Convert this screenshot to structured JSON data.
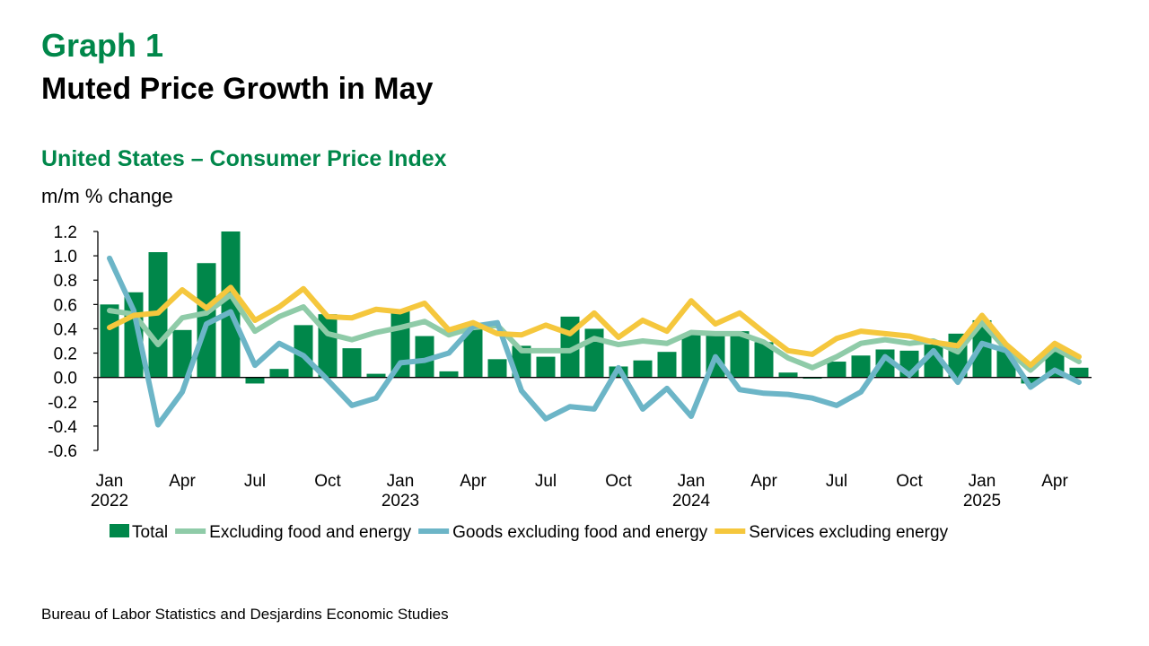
{
  "header": {
    "graph_label": "Graph 1",
    "title": "Muted Price Growth in May"
  },
  "chart_data": {
    "type": "bar+line",
    "title": "United States – Consumer Price Index",
    "ylabel": "m/m % change",
    "ylim": [
      -0.6,
      1.2
    ],
    "yticks": [
      "1.2",
      "1.0",
      "0.8",
      "0.6",
      "0.4",
      "0.2",
      "0.0",
      "-0.2",
      "-0.4",
      "-0.6"
    ],
    "x_start": "2022-01",
    "x_end": "2025-05",
    "xtick_labels": [
      {
        "month": "Jan",
        "year": "2022"
      },
      {
        "month": "Apr"
      },
      {
        "month": "Jul"
      },
      {
        "month": "Oct"
      },
      {
        "month": "Jan",
        "year": "2023"
      },
      {
        "month": "Apr"
      },
      {
        "month": "Jul"
      },
      {
        "month": "Oct"
      },
      {
        "month": "Jan",
        "year": "2024"
      },
      {
        "month": "Apr"
      },
      {
        "month": "Jul"
      },
      {
        "month": "Oct"
      },
      {
        "month": "Jan",
        "year": "2025"
      },
      {
        "month": "Apr"
      }
    ],
    "legend_position": "bottom",
    "grid": false,
    "series": [
      {
        "name": "Total",
        "kind": "bar",
        "color": "#00874A",
        "values": [
          0.6,
          0.7,
          1.03,
          0.39,
          0.94,
          1.2,
          -0.05,
          0.07,
          0.43,
          0.52,
          0.24,
          0.03,
          0.55,
          0.34,
          0.05,
          0.4,
          0.15,
          0.26,
          0.17,
          0.5,
          0.4,
          0.09,
          0.14,
          0.21,
          0.35,
          0.37,
          0.38,
          0.29,
          0.04,
          -0.01,
          0.13,
          0.18,
          0.23,
          0.22,
          0.27,
          0.36,
          0.47,
          0.22,
          -0.05,
          0.21,
          0.08
        ]
      },
      {
        "name": "Excluding food and energy",
        "kind": "line",
        "color": "#8FCBA8",
        "values": [
          0.55,
          0.52,
          0.27,
          0.49,
          0.53,
          0.68,
          0.38,
          0.5,
          0.58,
          0.36,
          0.31,
          0.37,
          0.41,
          0.46,
          0.35,
          0.41,
          0.43,
          0.22,
          0.22,
          0.22,
          0.32,
          0.27,
          0.3,
          0.28,
          0.37,
          0.36,
          0.36,
          0.29,
          0.16,
          0.08,
          0.17,
          0.28,
          0.31,
          0.28,
          0.3,
          0.21,
          0.45,
          0.23,
          0.06,
          0.24,
          0.13
        ]
      },
      {
        "name": "Goods excluding food and energy",
        "kind": "line",
        "color": "#6CB5C7",
        "values": [
          0.98,
          0.55,
          -0.39,
          -0.12,
          0.44,
          0.54,
          0.1,
          0.28,
          0.18,
          -0.02,
          -0.23,
          -0.17,
          0.12,
          0.14,
          0.2,
          0.42,
          0.45,
          -0.11,
          -0.34,
          -0.24,
          -0.26,
          0.08,
          -0.26,
          -0.09,
          -0.32,
          0.17,
          -0.1,
          -0.13,
          -0.14,
          -0.17,
          -0.23,
          -0.12,
          0.17,
          0.02,
          0.22,
          -0.04,
          0.28,
          0.22,
          -0.08,
          0.06,
          -0.04
        ]
      },
      {
        "name": "Services excluding energy",
        "kind": "line",
        "color": "#F5C73D",
        "values": [
          0.41,
          0.51,
          0.53,
          0.72,
          0.57,
          0.74,
          0.47,
          0.58,
          0.73,
          0.5,
          0.49,
          0.56,
          0.54,
          0.61,
          0.39,
          0.45,
          0.36,
          0.35,
          0.43,
          0.36,
          0.53,
          0.33,
          0.47,
          0.38,
          0.63,
          0.44,
          0.53,
          0.37,
          0.22,
          0.19,
          0.32,
          0.38,
          0.36,
          0.34,
          0.29,
          0.26,
          0.51,
          0.27,
          0.1,
          0.28,
          0.17
        ]
      }
    ]
  },
  "footer": {
    "source": "Bureau of Labor Statistics and Desjardins Economic Studies"
  }
}
